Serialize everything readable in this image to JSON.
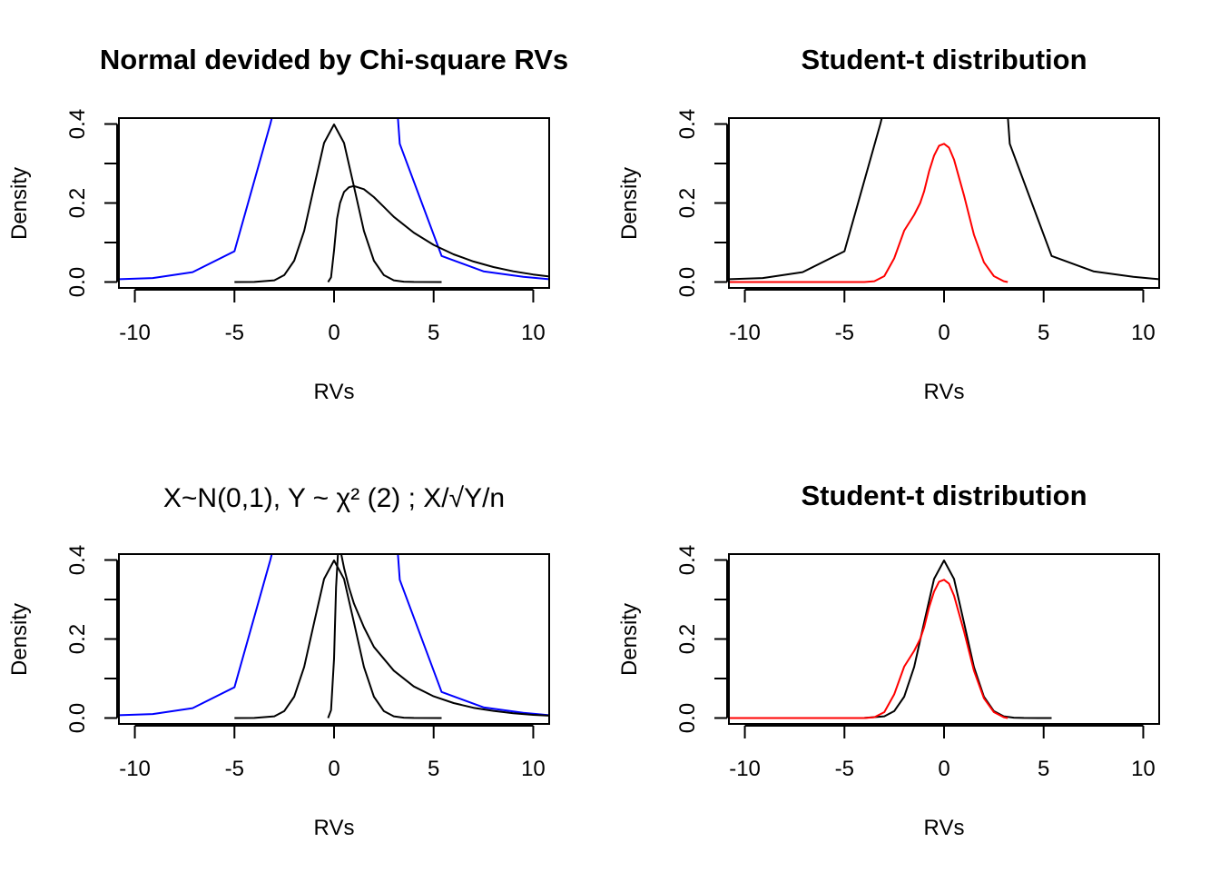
{
  "colors": {
    "black": "#000000",
    "blue": "#0000ff",
    "red": "#ff0000"
  },
  "chart_data": [
    {
      "type": "line",
      "title": "Normal devided by Chi-square RVs",
      "xlabel": "RVs",
      "ylabel": "Density",
      "xlim": [
        -10.8,
        10.8
      ],
      "ylim": [
        -0.015,
        0.415
      ],
      "xticks": [
        -10,
        -5,
        0,
        5,
        10
      ],
      "yticks": [
        0.0,
        0.1,
        0.2,
        0.3,
        0.4
      ],
      "ytick_labels": [
        "0.0",
        "",
        "0.2",
        "",
        "0.4"
      ],
      "grid": false,
      "series": [
        {
          "color": "#0000ff",
          "x": [
            -12,
            -9.1,
            -7.1,
            -5,
            -3.2,
            -3.1
          ],
          "y": [
            0.005,
            0.01,
            0.025,
            0.078,
            0.4,
            0.42
          ]
        },
        {
          "color": "#0000ff",
          "x": [
            3.2,
            3.3,
            5.4,
            7.5,
            9.5,
            10.8
          ],
          "y": [
            0.42,
            0.35,
            0.066,
            0.027,
            0.013,
            0.007
          ]
        },
        {
          "color": "#000000",
          "x": [
            -5,
            -4,
            -3,
            -2.5,
            -2,
            -1.5,
            -1,
            -0.5,
            0,
            0.5,
            1,
            1.5,
            2,
            2.5,
            3,
            3.5,
            4,
            5.4
          ],
          "y": [
            0,
            0.0001,
            0.0044,
            0.0175,
            0.054,
            0.1295,
            0.242,
            0.352,
            0.399,
            0.352,
            0.242,
            0.1295,
            0.054,
            0.0175,
            0.0044,
            0.0009,
            0.0001,
            0
          ]
        },
        {
          "color": "#000000",
          "x": [
            -0.3,
            -0.15,
            0,
            0.15,
            0.3,
            0.5,
            0.75,
            1,
            1.5,
            2,
            2.5,
            3,
            4,
            5,
            6,
            7,
            8,
            9,
            10,
            10.8
          ],
          "y": [
            0,
            0.012,
            0.08,
            0.16,
            0.2,
            0.228,
            0.24,
            0.243,
            0.235,
            0.215,
            0.19,
            0.165,
            0.125,
            0.094,
            0.07,
            0.052,
            0.038,
            0.027,
            0.019,
            0.014
          ]
        }
      ]
    },
    {
      "type": "line",
      "title": "Student-t distribution",
      "xlabel": "RVs",
      "ylabel": "Density",
      "xlim": [
        -10.8,
        10.8
      ],
      "ylim": [
        -0.015,
        0.415
      ],
      "xticks": [
        -10,
        -5,
        0,
        5,
        10
      ],
      "yticks": [
        0.0,
        0.1,
        0.2,
        0.3,
        0.4
      ],
      "ytick_labels": [
        "0.0",
        "",
        "0.2",
        "",
        "0.4"
      ],
      "grid": false,
      "series": [
        {
          "color": "#000000",
          "x": [
            -12,
            -9.1,
            -7.1,
            -5,
            -3.2,
            -3.1
          ],
          "y": [
            0.005,
            0.01,
            0.025,
            0.078,
            0.4,
            0.42
          ]
        },
        {
          "color": "#000000",
          "x": [
            3.2,
            3.3,
            5.4,
            7.5,
            9.5,
            10.8
          ],
          "y": [
            0.42,
            0.35,
            0.066,
            0.027,
            0.013,
            0.007
          ]
        },
        {
          "color": "#ff0000",
          "x": [
            -12,
            -4,
            -3.5,
            -3,
            -2.5,
            -2,
            -1.5,
            -1.2,
            -1,
            -0.75,
            -0.5,
            -0.25,
            0,
            0.25,
            0.5,
            1,
            1.5,
            2,
            2.5,
            3,
            3.2
          ],
          "y": [
            0,
            0,
            0.002,
            0.015,
            0.06,
            0.13,
            0.17,
            0.2,
            0.23,
            0.28,
            0.32,
            0.345,
            0.35,
            0.34,
            0.31,
            0.22,
            0.12,
            0.05,
            0.015,
            0.002,
            0
          ]
        }
      ]
    },
    {
      "type": "line",
      "title": "X~N(0,1), Y ~ χ² (2) ; X/√Y/n",
      "xlabel": "RVs",
      "ylabel": "Density",
      "xlim": [
        -10.8,
        10.8
      ],
      "ylim": [
        -0.015,
        0.415
      ],
      "xticks": [
        -10,
        -5,
        0,
        5,
        10
      ],
      "yticks": [
        0.0,
        0.1,
        0.2,
        0.3,
        0.4
      ],
      "ytick_labels": [
        "0.0",
        "",
        "0.2",
        "",
        "0.4"
      ],
      "grid": false,
      "series": [
        {
          "color": "#0000ff",
          "x": [
            -12,
            -9.1,
            -7.1,
            -5,
            -3.2,
            -3.1
          ],
          "y": [
            0.005,
            0.01,
            0.025,
            0.078,
            0.4,
            0.42
          ]
        },
        {
          "color": "#0000ff",
          "x": [
            3.2,
            3.3,
            5.4,
            7.5,
            9.5,
            10.8
          ],
          "y": [
            0.42,
            0.35,
            0.066,
            0.027,
            0.013,
            0.007
          ]
        },
        {
          "color": "#000000",
          "x": [
            -5,
            -4,
            -3,
            -2.5,
            -2,
            -1.5,
            -1,
            -0.5,
            0,
            0.5,
            1,
            1.5,
            2,
            2.5,
            3,
            3.5,
            4,
            5.4
          ],
          "y": [
            0,
            0.0001,
            0.0044,
            0.0175,
            0.054,
            0.1295,
            0.242,
            0.352,
            0.399,
            0.352,
            0.242,
            0.1295,
            0.054,
            0.0175,
            0.0044,
            0.0009,
            0.0001,
            0
          ]
        },
        {
          "color": "#000000",
          "x": [
            -0.3,
            -0.15,
            0,
            0.1,
            0.2,
            0.3,
            0.5,
            0.75,
            1,
            1.5,
            2,
            3,
            4,
            5,
            6,
            7,
            8,
            9,
            10,
            10.8
          ],
          "y": [
            0,
            0.02,
            0.15,
            0.33,
            0.42,
            0.43,
            0.38,
            0.33,
            0.29,
            0.23,
            0.18,
            0.12,
            0.08,
            0.055,
            0.038,
            0.026,
            0.018,
            0.012,
            0.008,
            0.006
          ]
        }
      ]
    },
    {
      "type": "line",
      "title": "Student-t distribution",
      "xlabel": "RVs",
      "ylabel": "Density",
      "xlim": [
        -10.8,
        10.8
      ],
      "ylim": [
        -0.015,
        0.415
      ],
      "xticks": [
        -10,
        -5,
        0,
        5,
        10
      ],
      "yticks": [
        0.0,
        0.1,
        0.2,
        0.3,
        0.4
      ],
      "ytick_labels": [
        "0.0",
        "",
        "0.2",
        "",
        "0.4"
      ],
      "grid": false,
      "series": [
        {
          "color": "#000000",
          "x": [
            -5,
            -4,
            -3,
            -2.5,
            -2,
            -1.5,
            -1,
            -0.5,
            0,
            0.5,
            1,
            1.5,
            2,
            2.5,
            3,
            3.5,
            4,
            5.4
          ],
          "y": [
            0,
            0.0001,
            0.0044,
            0.0175,
            0.054,
            0.1295,
            0.242,
            0.352,
            0.399,
            0.352,
            0.242,
            0.1295,
            0.054,
            0.0175,
            0.0044,
            0.0009,
            0.0001,
            0
          ]
        },
        {
          "color": "#ff0000",
          "x": [
            -12,
            -4,
            -3.5,
            -3,
            -2.5,
            -2,
            -1.5,
            -1.2,
            -1,
            -0.75,
            -0.5,
            -0.25,
            0,
            0.25,
            0.5,
            1,
            1.5,
            2,
            2.5,
            3,
            3.2
          ],
          "y": [
            0,
            0,
            0.002,
            0.015,
            0.06,
            0.13,
            0.17,
            0.2,
            0.23,
            0.28,
            0.32,
            0.345,
            0.35,
            0.34,
            0.31,
            0.22,
            0.12,
            0.05,
            0.015,
            0.002,
            0
          ]
        }
      ]
    }
  ]
}
